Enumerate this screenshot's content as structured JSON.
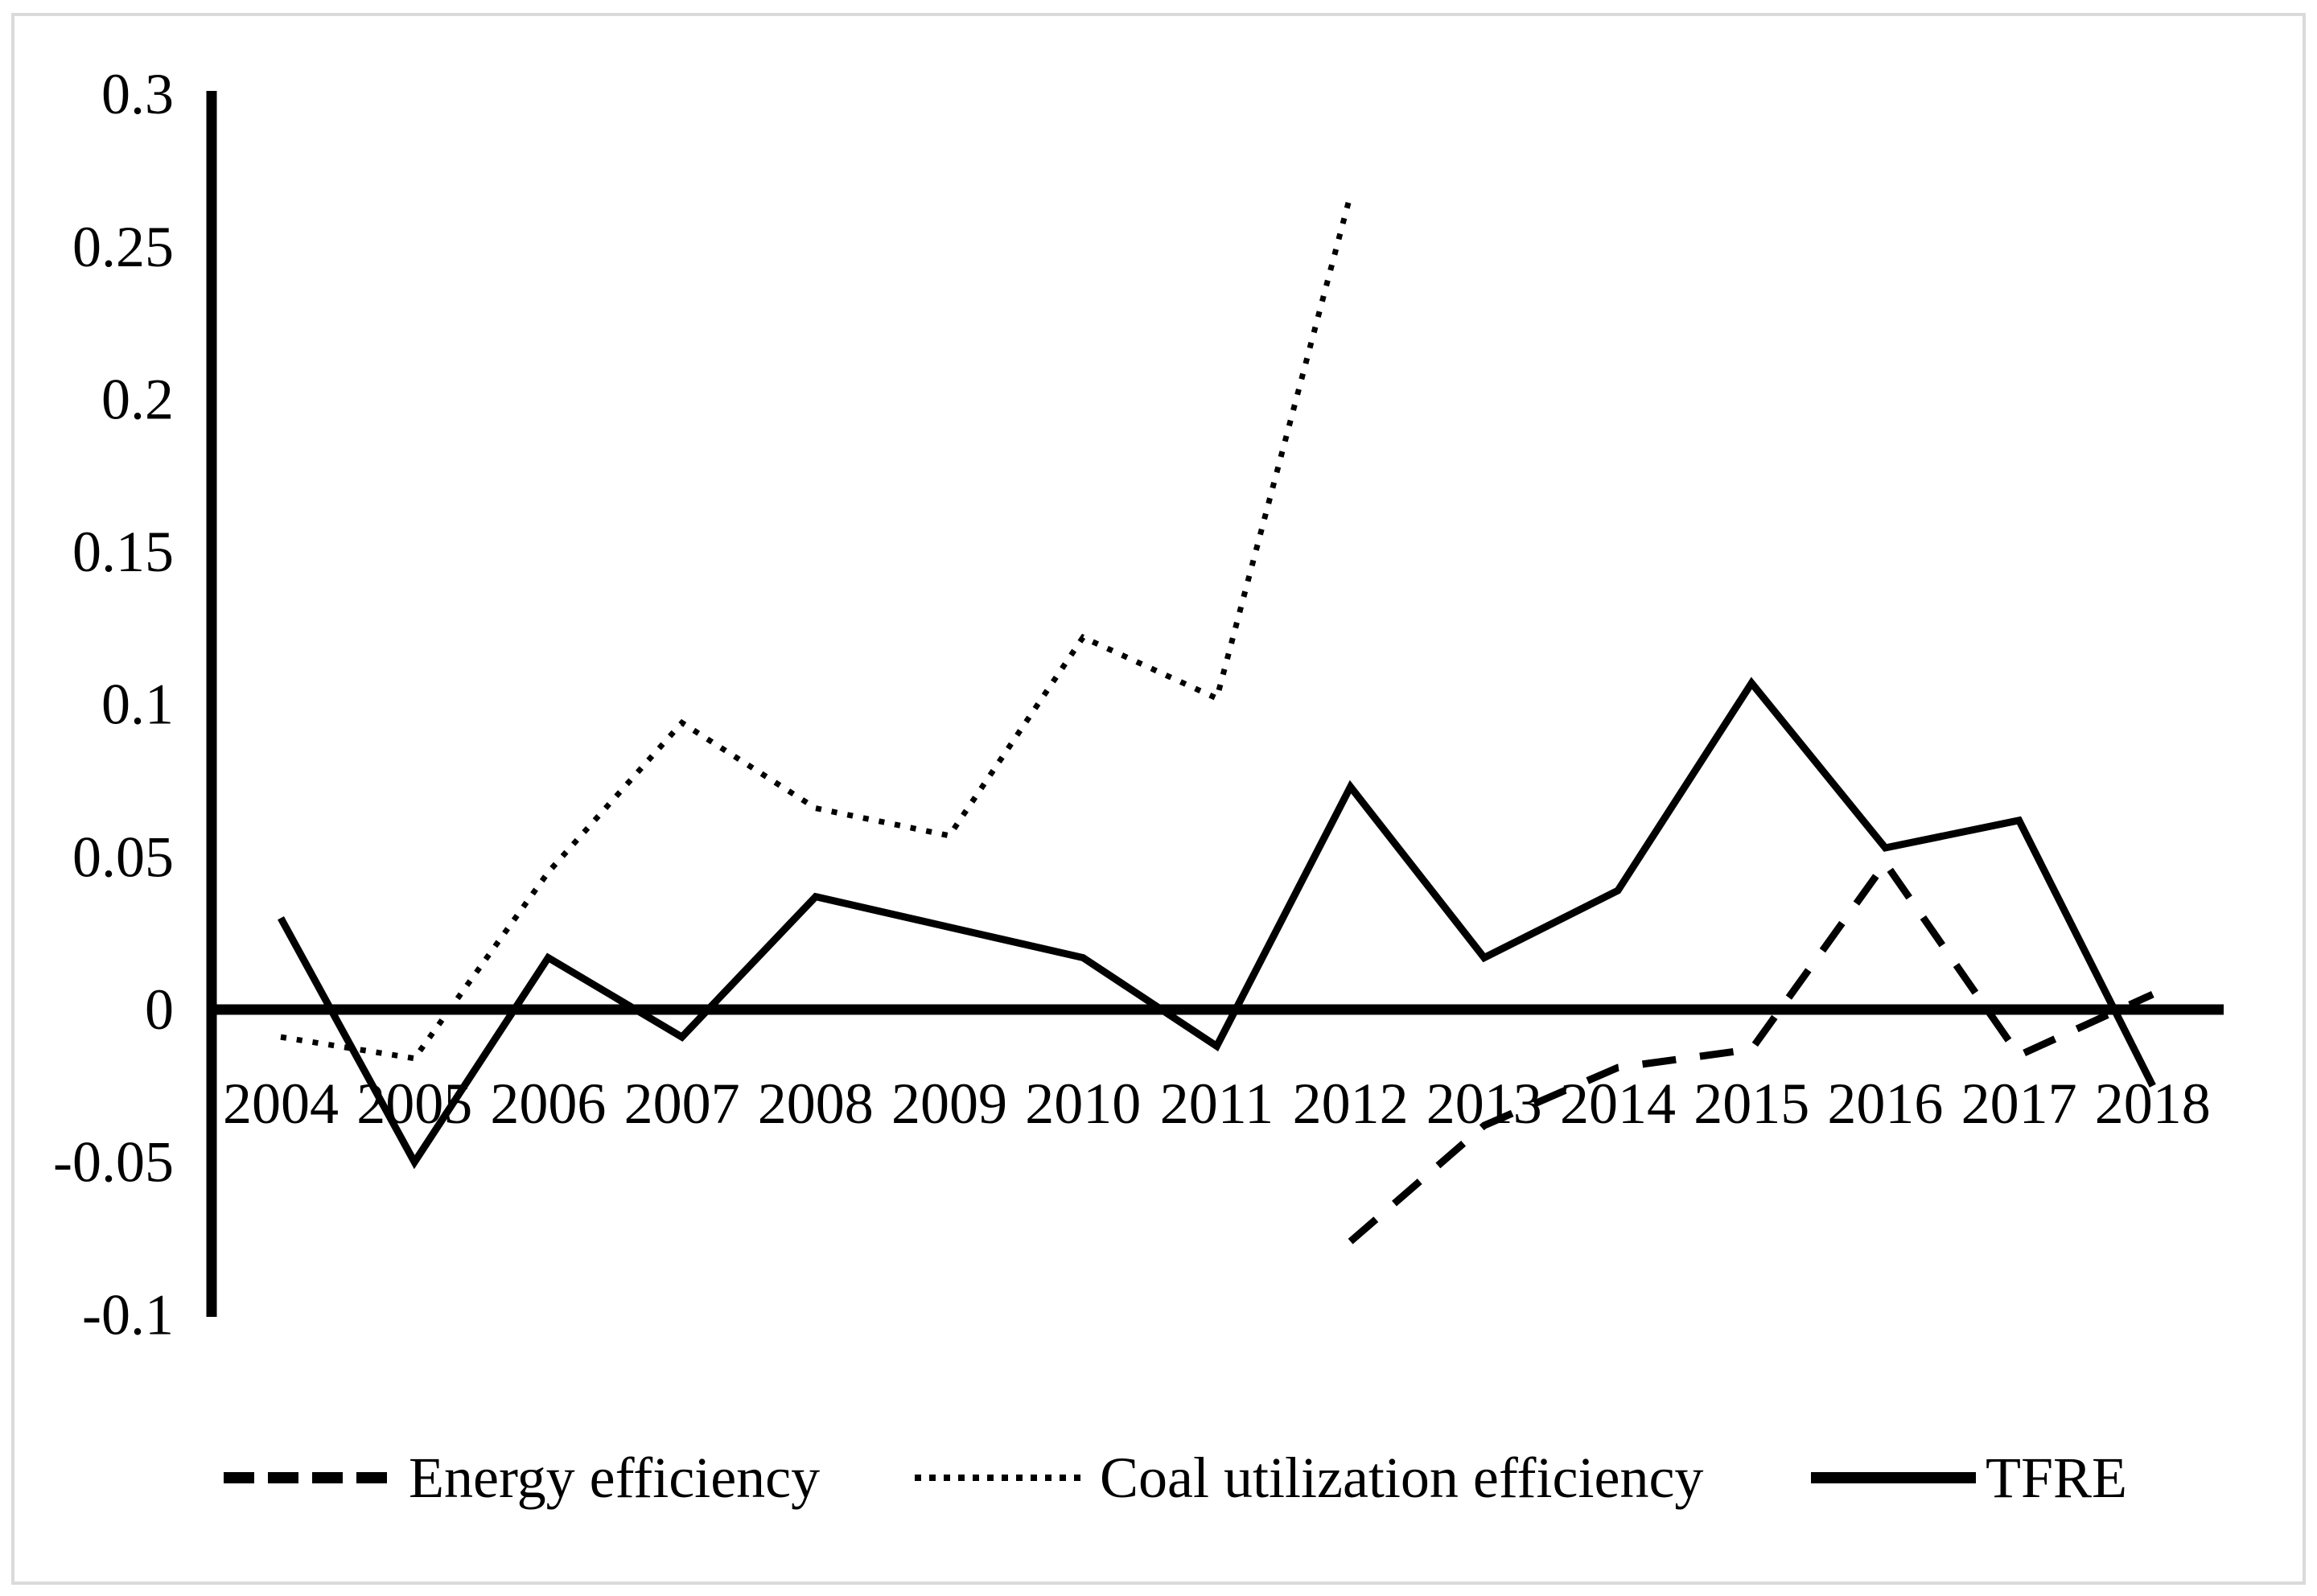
{
  "chart_data": {
    "type": "line",
    "title": "",
    "xlabel": "",
    "ylabel": "",
    "x": [
      2004,
      2005,
      2006,
      2007,
      2008,
      2009,
      2010,
      2011,
      2012,
      2013,
      2014,
      2015,
      2016,
      2017,
      2018
    ],
    "series": [
      {
        "name": "Energy efficiency",
        "style": "dashed",
        "values": [
          null,
          null,
          null,
          null,
          null,
          null,
          null,
          null,
          -0.076,
          -0.038,
          -0.019,
          -0.013,
          0.048,
          -0.015,
          0.005
        ]
      },
      {
        "name": "Coal utilization efficiency",
        "style": "dotted",
        "values": [
          -0.009,
          -0.016,
          0.045,
          0.094,
          0.066,
          0.057,
          0.122,
          0.102,
          0.267,
          null,
          null,
          null,
          null,
          null,
          null
        ]
      },
      {
        "name": "TFRE",
        "style": "solid",
        "values": [
          0.03,
          -0.05,
          0.017,
          -0.009,
          0.037,
          0.027,
          0.017,
          -0.012,
          0.073,
          0.017,
          0.039,
          0.107,
          0.053,
          0.062,
          -0.025
        ]
      }
    ],
    "y_ticks": [
      {
        "value": 0.3,
        "label": "0.3"
      },
      {
        "value": 0.25,
        "label": "0.25"
      },
      {
        "value": 0.2,
        "label": "0.2"
      },
      {
        "value": 0.15,
        "label": "0.15"
      },
      {
        "value": 0.1,
        "label": "0.1"
      },
      {
        "value": 0.05,
        "label": "0.05"
      },
      {
        "value": 0,
        "label": "0"
      },
      {
        "value": -0.05,
        "label": "-0.05"
      },
      {
        "value": -0.1,
        "label": "-0.1"
      }
    ],
    "ylim": [
      -0.1,
      0.3
    ],
    "grid": false,
    "legend_position": "bottom",
    "line_color": "#000000",
    "axis_color": "#000000",
    "background": "#ffffff",
    "border_color": "#dadada"
  }
}
